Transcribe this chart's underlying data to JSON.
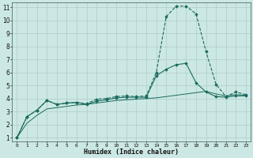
{
  "xlabel": "Humidex (Indice chaleur)",
  "bg_color": "#cce8e4",
  "grid_color": "#b0ccc8",
  "line_color": "#1a6b5e",
  "xlim": [
    -0.5,
    23.5
  ],
  "ylim": [
    0.7,
    11.4
  ],
  "xticks": [
    0,
    1,
    2,
    3,
    4,
    5,
    6,
    7,
    8,
    9,
    10,
    11,
    12,
    13,
    14,
    15,
    16,
    17,
    18,
    19,
    20,
    21,
    22,
    23
  ],
  "yticks": [
    1,
    2,
    3,
    4,
    5,
    6,
    7,
    8,
    9,
    10,
    11
  ],
  "line1_x": [
    0,
    1,
    2,
    3,
    4,
    5,
    6,
    7,
    8,
    9,
    10,
    11,
    12,
    13,
    14,
    15,
    16,
    17,
    18,
    19,
    20,
    21,
    22,
    23
  ],
  "line1_y": [
    1.0,
    2.6,
    3.1,
    3.85,
    3.55,
    3.65,
    3.7,
    3.6,
    3.95,
    4.0,
    4.15,
    4.2,
    4.15,
    4.2,
    6.0,
    10.3,
    11.1,
    11.1,
    10.5,
    7.6,
    5.1,
    4.15,
    4.5,
    4.3
  ],
  "line2_x": [
    0,
    1,
    2,
    3,
    4,
    5,
    6,
    7,
    8,
    9,
    10,
    11,
    12,
    13,
    14,
    15,
    16,
    17,
    18,
    19,
    20,
    21,
    22,
    23
  ],
  "line2_y": [
    1.0,
    2.6,
    3.1,
    3.85,
    3.55,
    3.65,
    3.7,
    3.55,
    3.8,
    3.9,
    4.05,
    4.1,
    4.1,
    4.1,
    5.75,
    6.25,
    6.6,
    6.7,
    5.2,
    4.5,
    4.15,
    4.1,
    4.2,
    4.2
  ],
  "line3_x": [
    0,
    1,
    2,
    3,
    4,
    5,
    6,
    7,
    8,
    9,
    10,
    11,
    12,
    13,
    14,
    15,
    16,
    17,
    18,
    19,
    20,
    21,
    22,
    23
  ],
  "line3_y": [
    1.0,
    2.1,
    2.7,
    3.2,
    3.3,
    3.4,
    3.5,
    3.55,
    3.65,
    3.75,
    3.85,
    3.9,
    3.95,
    4.0,
    4.05,
    4.15,
    4.25,
    4.35,
    4.45,
    4.55,
    4.35,
    4.2,
    4.3,
    4.25
  ]
}
